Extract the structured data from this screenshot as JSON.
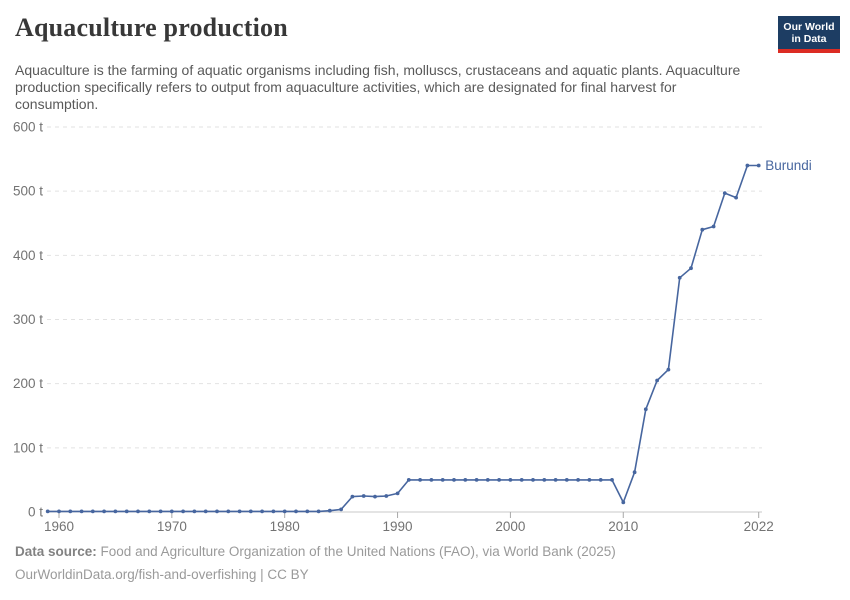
{
  "header": {
    "title": "Aquaculture production",
    "subtitle": "Aquaculture is the farming of aquatic organisms including fish, molluscs, crustaceans and aquatic plants. Aquaculture production specifically refers to output from aquaculture activities, which are designated for final harvest for consumption.",
    "logo": {
      "line1": "Our World",
      "line2": "in Data"
    }
  },
  "footer": {
    "datasource_label": "Data source:",
    "datasource_text": "Food and Agriculture Organization of the United Nations (FAO), via World Bank (2025)",
    "url_line": "OurWorldinData.org/fish-and-overfishing | CC BY"
  },
  "chart_data": {
    "type": "line",
    "title": "Aquaculture production",
    "unit": "t",
    "entity_label": "Burundi",
    "x": [
      1959,
      1960,
      1961,
      1962,
      1963,
      1964,
      1965,
      1966,
      1967,
      1968,
      1969,
      1970,
      1971,
      1972,
      1973,
      1974,
      1975,
      1976,
      1977,
      1978,
      1979,
      1980,
      1981,
      1982,
      1983,
      1984,
      1985,
      1986,
      1987,
      1988,
      1989,
      1990,
      1991,
      1992,
      1993,
      1994,
      1995,
      1996,
      1997,
      1998,
      1999,
      2000,
      2001,
      2002,
      2003,
      2004,
      2005,
      2006,
      2007,
      2008,
      2009,
      2010,
      2011,
      2012,
      2013,
      2014,
      2015,
      2016,
      2017,
      2018,
      2019,
      2020,
      2021,
      2022
    ],
    "series": [
      {
        "name": "Burundi",
        "values": [
          1,
          1,
          1,
          1,
          1,
          1,
          1,
          1,
          1,
          1,
          1,
          1,
          1,
          1,
          1,
          1,
          1,
          1,
          1,
          1,
          1,
          1,
          1,
          1,
          1,
          2,
          4,
          24,
          25,
          24,
          25,
          29,
          50,
          50,
          50,
          50,
          50,
          50,
          50,
          50,
          50,
          50,
          50,
          50,
          50,
          50,
          50,
          50,
          50,
          50,
          50,
          15,
          62,
          160,
          205,
          222,
          365,
          380,
          440,
          445,
          497,
          490,
          540,
          540
        ]
      }
    ],
    "x_ticks": [
      1960,
      1970,
      1980,
      1990,
      2000,
      2010,
      2022
    ],
    "y_ticks": [
      0,
      100,
      200,
      300,
      400,
      500,
      600
    ],
    "xlim": [
      1959,
      2022
    ],
    "ylim": [
      0,
      600
    ],
    "grid": "horizontal-dashed",
    "legend_position": "end-of-line",
    "line_color": "#47669f",
    "label_color": "#47669f",
    "gridline_color": "#e2e2e2",
    "axis_color": "#c8c8c8",
    "tick_color": "#a8a8a8",
    "tick_label_color": "#737373"
  }
}
